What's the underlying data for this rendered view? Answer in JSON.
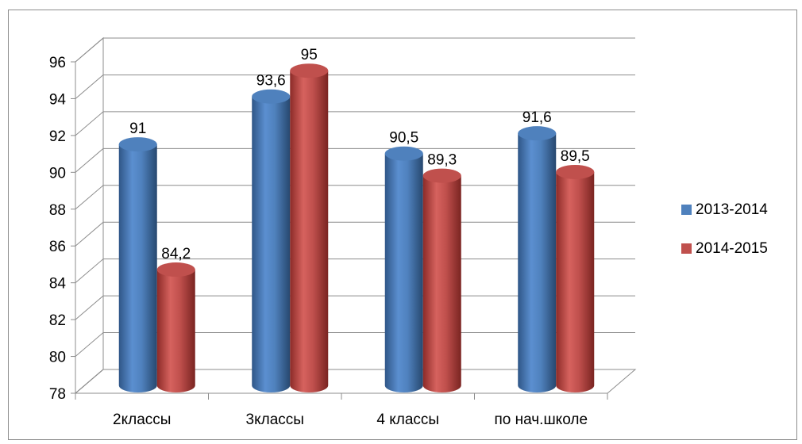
{
  "chart_data": {
    "type": "bar",
    "style": "3d-cylinder",
    "categories": [
      "2классы",
      "3классы",
      "4 классы",
      "по нач.школе"
    ],
    "series": [
      {
        "name": "2013-2014",
        "color": "#4f81bd",
        "values": [
          91,
          93.6,
          90.5,
          91.6
        ],
        "labels": [
          "91",
          "93,6",
          "90,5",
          "91,6"
        ]
      },
      {
        "name": "2014-2015",
        "color": "#c0504d",
        "values": [
          84.2,
          95,
          89.3,
          89.5
        ],
        "labels": [
          "84,2",
          "95",
          "89,3",
          "89,5"
        ]
      }
    ],
    "y_ticks": [
      "78",
      "80",
      "82",
      "84",
      "86",
      "88",
      "90",
      "92",
      "94",
      "96"
    ],
    "ylim": [
      78,
      96
    ],
    "grid": true,
    "legend_position": "right"
  }
}
